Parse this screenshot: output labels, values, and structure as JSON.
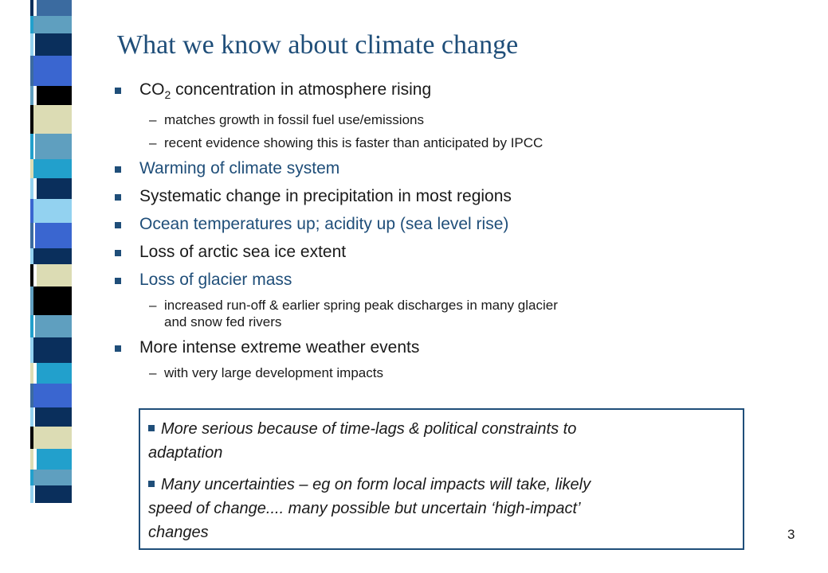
{
  "title": "What we know about climate change",
  "bullets": [
    {
      "pre": "CO",
      "sub": "2",
      "text": " concentration in atmosphere rising"
    },
    {
      "text": "matches growth in fossil fuel use/emissions"
    },
    {
      "text": "recent evidence showing this is faster than anticipated by IPCC"
    },
    {
      "text": "Warming of climate system"
    },
    {
      "text": "Systematic change in precipitation in most regions"
    },
    {
      "text": "Ocean temperatures up; acidity up (sea level rise)"
    },
    {
      "text": "Loss of arctic sea ice extent"
    },
    {
      "text": "Loss of glacier mass"
    },
    {
      "line1": "increased run-off & earlier spring peak discharges in many glacier",
      "line2": "and snow fed rivers"
    },
    {
      "text": "More intense extreme weather events"
    },
    {
      "text": "with very large development impacts"
    }
  ],
  "dash": "–",
  "callout": {
    "p1_line1": "More serious because of time-lags & political constraints to",
    "p1_line2": "adaptation",
    "p2_line1": "Many uncertainties – eg on form local impacts will take, likely",
    "p2_line2": "speed of change.... many possible but uncertain ‘high-impact’",
    "p2_line3": "changes"
  },
  "page_number": "3",
  "colors": {
    "accent": "#1f4e79",
    "stripes": [
      "#3b6ba0",
      "#5f9fbf",
      "#0a2f5c",
      "#22a0cc",
      "#93d2f0",
      "#dcdcb4",
      "#3a66d0",
      "#000000"
    ]
  }
}
